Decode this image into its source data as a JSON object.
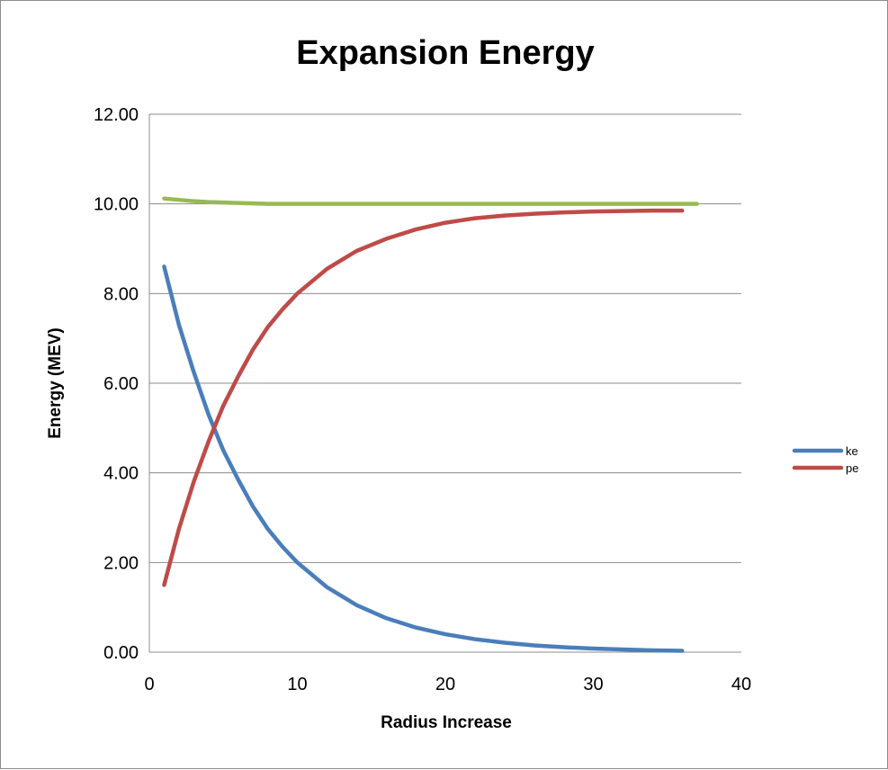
{
  "chart_data": {
    "type": "line",
    "title": "Expansion Energy",
    "xlabel": "Radius Increase",
    "ylabel": "Energy (MEV)",
    "xlim": [
      0,
      40
    ],
    "ylim": [
      0,
      12
    ],
    "x_ticks": [
      "0",
      "10",
      "20",
      "30",
      "40"
    ],
    "y_ticks": [
      "0.00",
      "2.00",
      "4.00",
      "6.00",
      "8.00",
      "10.00",
      "12.00"
    ],
    "grid": "horizontal",
    "legend_position": "right",
    "series": [
      {
        "name": "ke",
        "color": "#4a7ebb",
        "x": [
          1,
          2,
          3,
          4,
          5,
          6,
          7,
          8,
          9,
          10,
          12,
          14,
          16,
          18,
          20,
          22,
          24,
          26,
          28,
          30,
          32,
          34,
          36
        ],
        "y": [
          8.6,
          7.3,
          6.25,
          5.3,
          4.5,
          3.85,
          3.25,
          2.75,
          2.35,
          2.0,
          1.45,
          1.05,
          0.76,
          0.55,
          0.4,
          0.29,
          0.21,
          0.15,
          0.11,
          0.08,
          0.06,
          0.04,
          0.03
        ]
      },
      {
        "name": "pe",
        "color": "#be4b48",
        "x": [
          1,
          2,
          3,
          4,
          5,
          6,
          7,
          8,
          9,
          10,
          12,
          14,
          16,
          18,
          20,
          22,
          24,
          26,
          28,
          30,
          32,
          34,
          36
        ],
        "y": [
          1.5,
          2.75,
          3.8,
          4.7,
          5.5,
          6.15,
          6.75,
          7.25,
          7.65,
          8.0,
          8.55,
          8.95,
          9.22,
          9.43,
          9.58,
          9.68,
          9.74,
          9.78,
          9.81,
          9.83,
          9.84,
          9.85,
          9.85
        ]
      },
      {
        "name": "",
        "color": "#98b954",
        "x": [
          1,
          2,
          3,
          4,
          5,
          6,
          7,
          8,
          10,
          12,
          15,
          20,
          25,
          30,
          35,
          37
        ],
        "y": [
          10.12,
          10.09,
          10.06,
          10.04,
          10.03,
          10.02,
          10.01,
          10.0,
          10.0,
          10.0,
          10.0,
          10.0,
          10.0,
          10.0,
          10.0,
          10.0
        ]
      }
    ]
  }
}
